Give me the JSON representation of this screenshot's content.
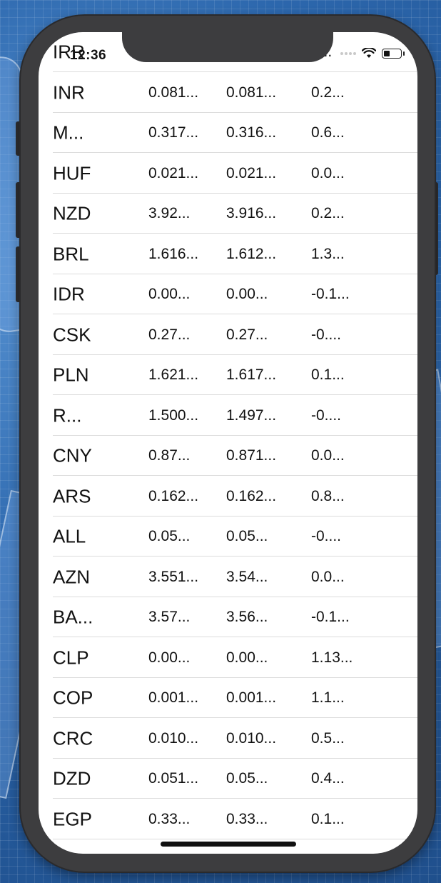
{
  "status_bar": {
    "time": "12:36"
  },
  "rows": [
    {
      "code": "IRR",
      "v1": "",
      "v2": "",
      "v3": "0..."
    },
    {
      "code": "INR",
      "v1": "0.081...",
      "v2": "0.081...",
      "v3": "0.2..."
    },
    {
      "code": "M...",
      "v1": "0.317...",
      "v2": "0.316...",
      "v3": "0.6..."
    },
    {
      "code": "HUF",
      "v1": "0.021...",
      "v2": "0.021...",
      "v3": "0.0..."
    },
    {
      "code": "NZD",
      "v1": "3.92...",
      "v2": "3.916...",
      "v3": "0.2..."
    },
    {
      "code": "BRL",
      "v1": "1.616...",
      "v2": "1.612...",
      "v3": "1.3..."
    },
    {
      "code": "IDR",
      "v1": "0.00...",
      "v2": "0.00...",
      "v3": "-0.1..."
    },
    {
      "code": "CSK",
      "v1": "0.27...",
      "v2": "0.27...",
      "v3": "-0...."
    },
    {
      "code": "PLN",
      "v1": "1.621...",
      "v2": "1.617...",
      "v3": "0.1..."
    },
    {
      "code": "R...",
      "v1": "1.500...",
      "v2": "1.497...",
      "v3": "-0...."
    },
    {
      "code": "CNY",
      "v1": "0.87...",
      "v2": "0.871...",
      "v3": "0.0..."
    },
    {
      "code": "ARS",
      "v1": "0.162...",
      "v2": "0.162...",
      "v3": "0.8..."
    },
    {
      "code": "ALL",
      "v1": "0.05...",
      "v2": "0.05...",
      "v3": "-0...."
    },
    {
      "code": "AZN",
      "v1": "3.551...",
      "v2": "3.54...",
      "v3": "0.0..."
    },
    {
      "code": "BA...",
      "v1": "3.57...",
      "v2": "3.56...",
      "v3": "-0.1..."
    },
    {
      "code": "CLP",
      "v1": "0.00...",
      "v2": "0.00...",
      "v3": "1.13..."
    },
    {
      "code": "COP",
      "v1": "0.001...",
      "v2": "0.001...",
      "v3": "1.1..."
    },
    {
      "code": "CRC",
      "v1": "0.010...",
      "v2": "0.010...",
      "v3": "0.5..."
    },
    {
      "code": "DZD",
      "v1": "0.051...",
      "v2": "0.05...",
      "v3": "0.4..."
    },
    {
      "code": "EGP",
      "v1": "0.33...",
      "v2": "0.33...",
      "v3": "0.1..."
    }
  ]
}
